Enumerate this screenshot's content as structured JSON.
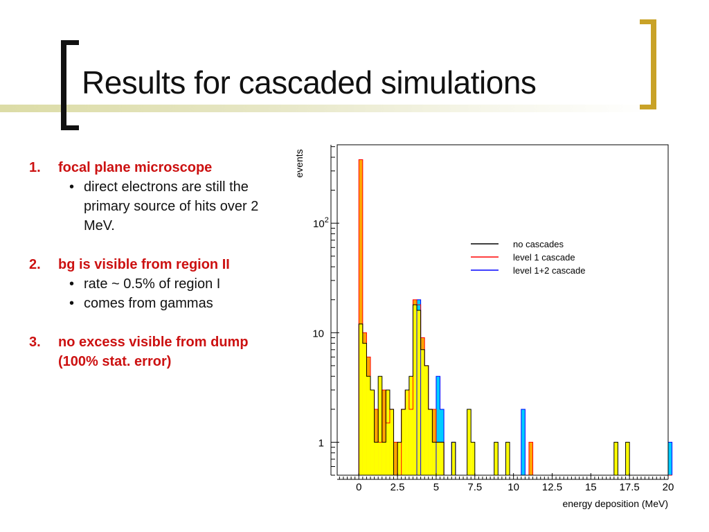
{
  "slide": {
    "title": "Results for cascaded simulations",
    "items": [
      {
        "number": "1.",
        "heading": "focal plane microscope",
        "bullets": [
          "direct electrons are still the primary source of hits over 2 MeV."
        ]
      },
      {
        "number": "2.",
        "heading": "bg is visible from region II",
        "bullets": [
          "rate ~ 0.5% of region I",
          "comes from gammas"
        ]
      },
      {
        "number": "3.",
        "heading": "no excess visible from dump (100% stat. error)",
        "bullets": []
      }
    ]
  },
  "chart_data": {
    "type": "histogram",
    "xlabel": "energy deposition (MeV)",
    "ylabel": "events",
    "xlim": [
      -1.4,
      20
    ],
    "ylog": true,
    "ylim": [
      0.5,
      520
    ],
    "bin_width": 0.25,
    "x_ticks": [
      "0",
      "2.5",
      "5",
      "7.5",
      "10",
      "12.5",
      "15",
      "17.5",
      "20"
    ],
    "x_tick_values": [
      0,
      2.5,
      5,
      7.5,
      10,
      12.5,
      15,
      17.5,
      20
    ],
    "y_ticks": [
      "1",
      "10",
      "10^2"
    ],
    "y_tick_values": [
      1,
      10,
      100
    ],
    "legend_position": "upper-right",
    "legend": [
      {
        "name": "no cascades",
        "color": "#000000"
      },
      {
        "name": "level 1 cascade",
        "color": "#ff0000"
      },
      {
        "name": "level 1+2 cascade",
        "color": "#0000ff"
      }
    ],
    "fills": {
      "no_cascades": "#ffff00",
      "level1": "#ffa500",
      "level12": "#00ccff"
    },
    "series": [
      {
        "name": "no cascades",
        "bins": [
          [
            0,
            12
          ],
          [
            0.25,
            8
          ],
          [
            0.5,
            4
          ],
          [
            0.75,
            3
          ],
          [
            1,
            1
          ],
          [
            1.25,
            4
          ],
          [
            1.5,
            1
          ],
          [
            1.75,
            3
          ],
          [
            2,
            2
          ],
          [
            2.25,
            0.5
          ],
          [
            2.5,
            1
          ],
          [
            2.75,
            2
          ],
          [
            3,
            3
          ],
          [
            3.25,
            4
          ],
          [
            3.5,
            18
          ],
          [
            3.75,
            16
          ],
          [
            4,
            7
          ],
          [
            4.25,
            5
          ],
          [
            4.5,
            2
          ],
          [
            4.75,
            1
          ],
          [
            5,
            1
          ],
          [
            5.25,
            1
          ],
          [
            5.5,
            0.5
          ],
          [
            5.75,
            0.5
          ],
          [
            6,
            1
          ],
          [
            6.25,
            0.5
          ],
          [
            6.5,
            0.5
          ],
          [
            7,
            2
          ],
          [
            7.25,
            1
          ],
          [
            7.5,
            0.5
          ],
          [
            8,
            0.5
          ],
          [
            8.75,
            1
          ],
          [
            9.5,
            1
          ],
          [
            16.5,
            1
          ],
          [
            17.25,
            1
          ]
        ]
      },
      {
        "name": "level 1 cascade",
        "bins": [
          [
            0,
            380
          ],
          [
            0.25,
            10
          ],
          [
            0.5,
            6
          ],
          [
            0.75,
            3
          ],
          [
            1,
            2
          ],
          [
            1.25,
            1
          ],
          [
            1.5,
            3
          ],
          [
            1.75,
            1.5
          ],
          [
            2,
            2
          ],
          [
            2.25,
            1
          ],
          [
            2.5,
            0.5
          ],
          [
            2.75,
            2
          ],
          [
            3,
            3
          ],
          [
            3.25,
            2
          ],
          [
            3.5,
            20
          ],
          [
            3.75,
            18
          ],
          [
            4,
            9
          ],
          [
            4.25,
            5
          ],
          [
            4.5,
            2
          ],
          [
            4.75,
            2
          ],
          [
            5,
            1
          ],
          [
            5.25,
            1
          ],
          [
            5.5,
            0.5
          ],
          [
            5.75,
            0.5
          ],
          [
            6,
            0.5
          ],
          [
            6.25,
            0.5
          ],
          [
            6.5,
            0.5
          ],
          [
            6.75,
            0.5
          ],
          [
            7,
            0.5
          ],
          [
            7.25,
            0.5
          ],
          [
            7.5,
            0.5
          ],
          [
            11,
            1
          ],
          [
            12,
            0.5
          ],
          [
            13,
            0.5
          ],
          [
            14.25,
            0.5
          ],
          [
            18,
            0.5
          ],
          [
            20,
            0.5
          ]
        ]
      },
      {
        "name": "level 1+2 cascade",
        "bins": [
          [
            3.75,
            20
          ],
          [
            5,
            4
          ],
          [
            5.25,
            2
          ],
          [
            6,
            1
          ],
          [
            10.5,
            2
          ],
          [
            20,
            1
          ]
        ]
      }
    ]
  }
}
